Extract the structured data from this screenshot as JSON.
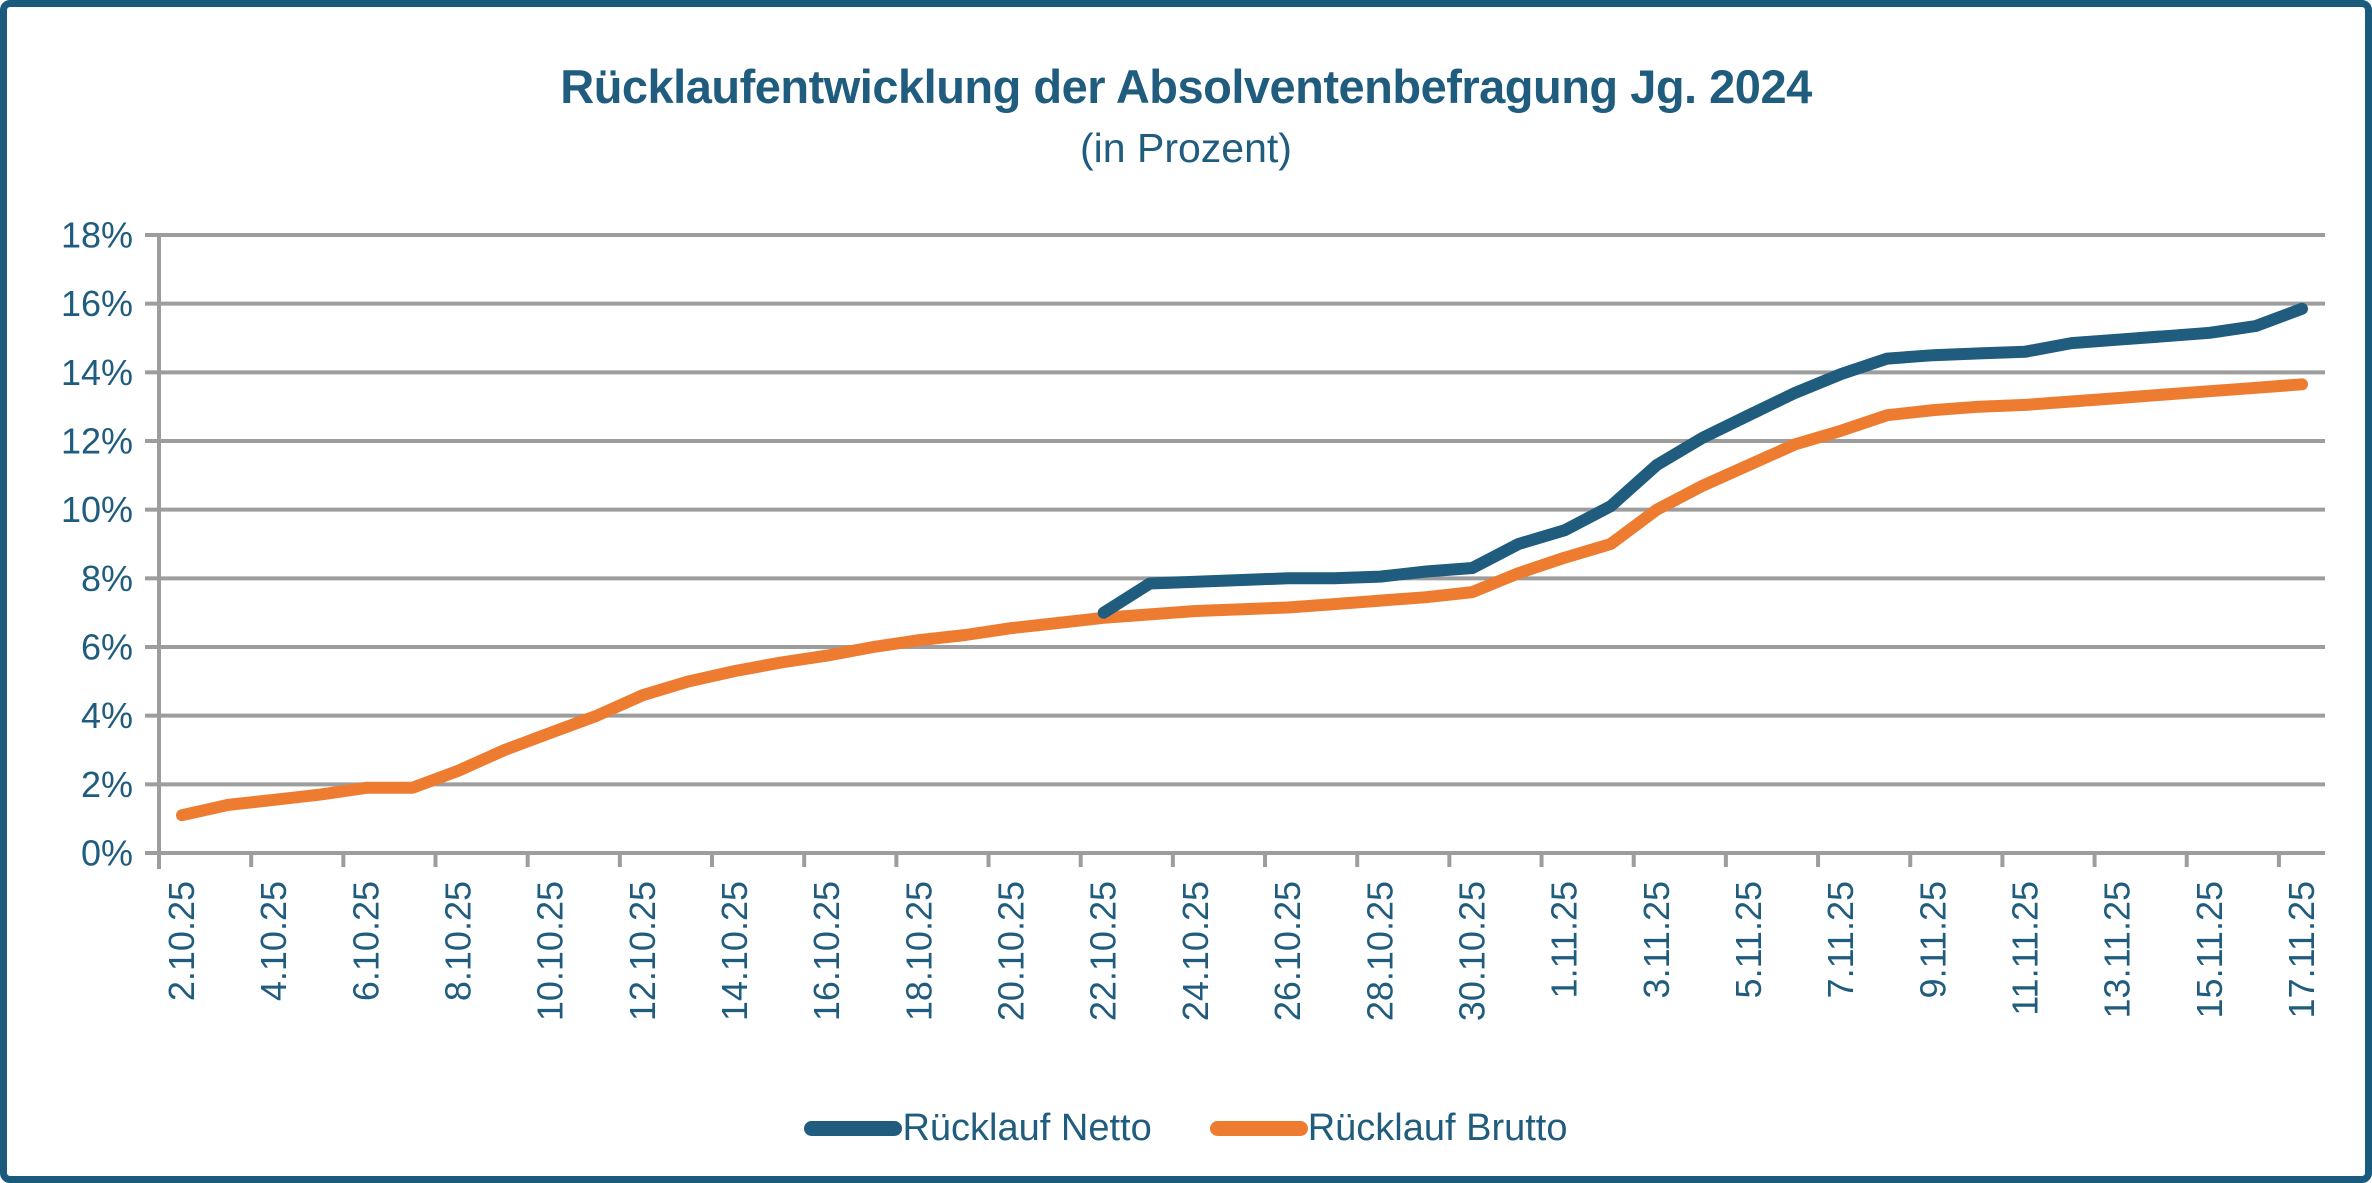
{
  "chart_data": {
    "type": "line",
    "title": "Rücklaufentwicklung der Absolventenbefragung Jg. 2024",
    "subtitle": "(in Prozent)",
    "grid": true,
    "legend_position": "bottom",
    "y_axis": {
      "min": 0,
      "max": 18,
      "step": 2,
      "tick_labels": [
        "0%",
        "2%",
        "4%",
        "6%",
        "8%",
        "10%",
        "12%",
        "14%",
        "16%",
        "18%"
      ]
    },
    "x_axis": {
      "tick_labels": [
        "2.10.25",
        "4.10.25",
        "6.10.25",
        "8.10.25",
        "10.10.25",
        "12.10.25",
        "14.10.25",
        "16.10.25",
        "18.10.25",
        "20.10.25",
        "22.10.25",
        "24.10.25",
        "26.10.25",
        "28.10.25",
        "30.10.25",
        "1.11.25",
        "3.11.25",
        "5.11.25",
        "7.11.25",
        "9.11.25",
        "11.11.25",
        "13.11.25",
        "15.11.25",
        "17.11.25"
      ],
      "points_start_date": "2.10.25",
      "points_interval_days": 1,
      "n_points": 47,
      "labels_every_n_points": 2
    },
    "series": [
      {
        "name": "Rücklauf Netto",
        "color": "#1F5C7E",
        "start_index": 20,
        "values": [
          7.0,
          7.85,
          7.9,
          7.95,
          8.0,
          8.0,
          8.05,
          8.2,
          8.3,
          9.0,
          9.4,
          10.1,
          11.3,
          12.1,
          12.75,
          13.4,
          13.95,
          14.4,
          14.5,
          14.55,
          14.6,
          14.85,
          14.95,
          15.05,
          15.15,
          15.35,
          15.85
        ]
      },
      {
        "name": "Rücklauf Brutto",
        "color": "#ED7C31",
        "start_index": 0,
        "values": [
          1.1,
          1.4,
          1.55,
          1.7,
          1.9,
          1.9,
          2.4,
          3.0,
          3.5,
          4.0,
          4.6,
          5.0,
          5.3,
          5.55,
          5.75,
          6.0,
          6.2,
          6.35,
          6.55,
          6.7,
          6.85,
          6.95,
          7.05,
          7.1,
          7.15,
          7.25,
          7.35,
          7.45,
          7.6,
          8.15,
          8.6,
          9.0,
          10.0,
          10.7,
          11.3,
          11.9,
          12.3,
          12.75,
          12.9,
          13.0,
          13.05,
          13.15,
          13.25,
          13.35,
          13.45,
          13.55,
          13.65
        ]
      }
    ],
    "colors": {
      "text": "#1F5C7E",
      "gridline": "#9D9D9D",
      "axis": "#9D9D9D",
      "frame_border": "#1A5B7D",
      "background": "#FFFFFF"
    }
  }
}
